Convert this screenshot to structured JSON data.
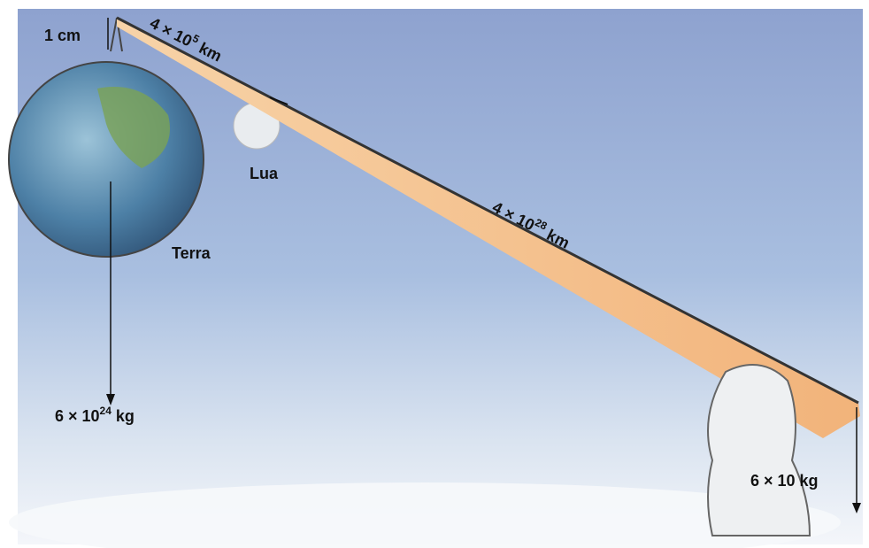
{
  "labels": {
    "earth_moon_gap": "1 cm",
    "earth_moon_distance": {
      "base": "4 × 10",
      "exponent": "5",
      "unit": "km"
    },
    "moon": "Lua",
    "lever_length": {
      "base": "4 × 10",
      "exponent": "28",
      "unit": "km"
    },
    "earth": "Terra",
    "earth_mass": {
      "base": "6 × 10",
      "exponent": "24",
      "unit": "kg"
    },
    "person_mass": "6 × 10 kg"
  }
}
